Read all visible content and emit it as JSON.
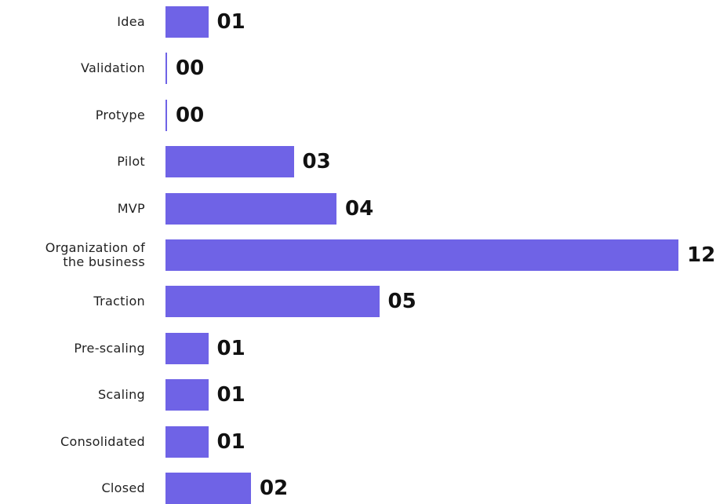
{
  "chart_data": {
    "type": "bar",
    "orientation": "horizontal",
    "categories": [
      "Idea",
      "Validation",
      "Protype",
      "Pilot",
      "MVP",
      "Organization of the business",
      "Traction",
      "Pre-scaling",
      "Scaling",
      "Consolidated",
      "Closed"
    ],
    "values": [
      1,
      0,
      0,
      3,
      4,
      12,
      5,
      1,
      1,
      1,
      2
    ],
    "value_labels": [
      "01",
      "00",
      "00",
      "03",
      "04",
      "12",
      "05",
      "01",
      "01",
      "01",
      "02"
    ],
    "color": "#6F63E6"
  }
}
